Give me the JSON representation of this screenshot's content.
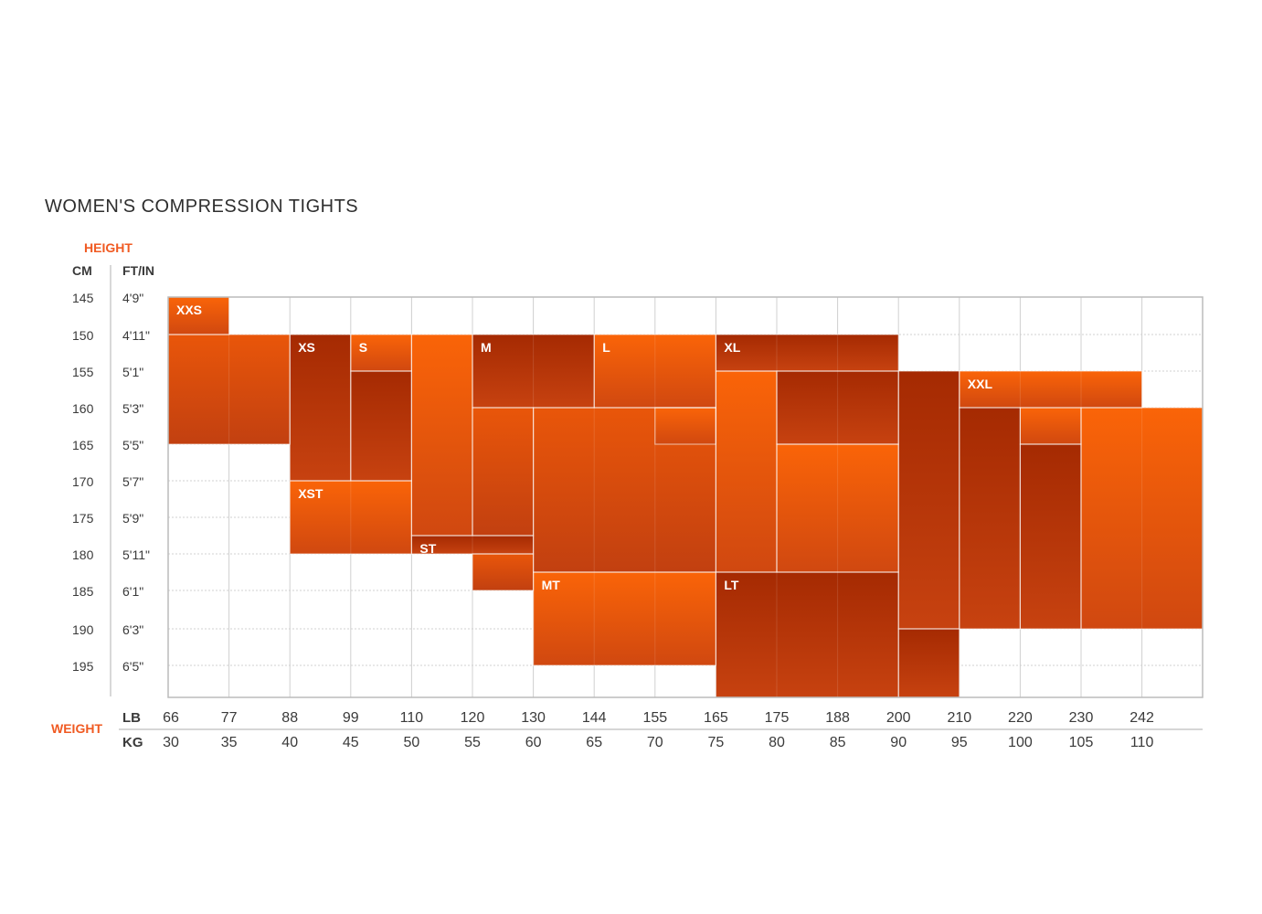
{
  "chart_data": {
    "type": "heatmap",
    "title": "WOMEN'S COMPRESSION TIGHTS",
    "height_axis": {
      "label": "HEIGHT",
      "unit_headers": [
        "CM",
        "FT/IN"
      ],
      "cm": [
        "145",
        "150",
        "155",
        "160",
        "165",
        "170",
        "175",
        "180",
        "185",
        "190",
        "195"
      ],
      "ftin": [
        "4'9\"",
        "4'11\"",
        "5'1\"",
        "5'3\"",
        "5'5\"",
        "5'7\"",
        "5'9\"",
        "5'11\"",
        "6'1\"",
        "6'3\"",
        "6'5\""
      ]
    },
    "weight_axis": {
      "label": "WEIGHT",
      "unit_headers": [
        "LB",
        "KG"
      ],
      "lb": [
        "66",
        "77",
        "88",
        "99",
        "110",
        "120",
        "130",
        "144",
        "155",
        "165",
        "175",
        "188",
        "200",
        "210",
        "220",
        "230",
        "242"
      ],
      "kg": [
        "30",
        "35",
        "40",
        "45",
        "50",
        "55",
        "60",
        "65",
        "70",
        "75",
        "80",
        "85",
        "90",
        "95",
        "100",
        "105",
        "110"
      ]
    },
    "size_regions": [
      {
        "size": "XXS",
        "kg_from": 30,
        "kg_to": 35,
        "cm_from": 145,
        "cm_to": 150,
        "shade": "light"
      },
      {
        "size": "",
        "kg_from": 30,
        "kg_to": 40,
        "cm_from": 150,
        "cm_to": 165,
        "shade": "mid"
      },
      {
        "size": "XS",
        "kg_from": 40,
        "kg_to": 45,
        "cm_from": 150,
        "cm_to": 170,
        "shade": "dark"
      },
      {
        "size": "S",
        "kg_from": 45,
        "kg_to": 50,
        "cm_from": 150,
        "cm_to": 155,
        "shade": "light"
      },
      {
        "size": "",
        "kg_from": 45,
        "kg_to": 50,
        "cm_from": 155,
        "cm_to": 170,
        "shade": "dark"
      },
      {
        "size": "",
        "kg_from": 50,
        "kg_to": 55,
        "cm_from": 150,
        "cm_to": 177.5,
        "shade": "light"
      },
      {
        "size": "M",
        "kg_from": 55,
        "kg_to": 65,
        "cm_from": 150,
        "cm_to": 160,
        "shade": "dark"
      },
      {
        "size": "",
        "kg_from": 55,
        "kg_to": 60,
        "cm_from": 160,
        "cm_to": 177.5,
        "shade": "mid"
      },
      {
        "size": "",
        "kg_from": 60,
        "kg_to": 75,
        "cm_from": 160,
        "cm_to": 182.5,
        "shade": "mid"
      },
      {
        "size": "L",
        "kg_from": 65,
        "kg_to": 75,
        "cm_from": 150,
        "cm_to": 160,
        "shade": "light"
      },
      {
        "size": "",
        "kg_from": 70,
        "kg_to": 75,
        "cm_from": 160,
        "cm_to": 165,
        "shade": "light"
      },
      {
        "size": "XL",
        "kg_from": 75,
        "kg_to": 90,
        "cm_from": 150,
        "cm_to": 155,
        "shade": "dark"
      },
      {
        "size": "",
        "kg_from": 75,
        "kg_to": 80,
        "cm_from": 155,
        "cm_to": 182.5,
        "shade": "light"
      },
      {
        "size": "",
        "kg_from": 80,
        "kg_to": 90,
        "cm_from": 155,
        "cm_to": 165,
        "shade": "dark"
      },
      {
        "size": "",
        "kg_from": 80,
        "kg_to": 90,
        "cm_from": 165,
        "cm_to": 182.5,
        "shade": "light"
      },
      {
        "size": "",
        "kg_from": 90,
        "kg_to": 95,
        "cm_from": 155,
        "cm_to": 190,
        "shade": "dark"
      },
      {
        "size": "XXL",
        "kg_from": 95,
        "kg_to": 110,
        "cm_from": 155,
        "cm_to": 160,
        "shade": "light"
      },
      {
        "size": "",
        "kg_from": 95,
        "kg_to": 100,
        "cm_from": 160,
        "cm_to": 190,
        "shade": "dark"
      },
      {
        "size": "",
        "kg_from": 100,
        "kg_to": 105,
        "cm_from": 160,
        "cm_to": 165,
        "shade": "light"
      },
      {
        "size": "",
        "kg_from": 100,
        "kg_to": 105,
        "cm_from": 165,
        "cm_to": 190,
        "shade": "dark"
      },
      {
        "size": "",
        "kg_from": 105,
        "kg_to": 115,
        "cm_from": 160,
        "cm_to": 190,
        "shade": "light"
      },
      {
        "size": "XST",
        "kg_from": 40,
        "kg_to": 50,
        "cm_from": 170,
        "cm_to": 180,
        "shade": "light"
      },
      {
        "size": "ST",
        "kg_from": 50,
        "kg_to": 60,
        "cm_from": 177.5,
        "cm_to": 180,
        "shade": "dark"
      },
      {
        "size": "",
        "kg_from": 55,
        "kg_to": 60,
        "cm_from": 180,
        "cm_to": 185,
        "shade": "mid"
      },
      {
        "size": "MT",
        "kg_from": 60,
        "kg_to": 75,
        "cm_from": 182.5,
        "cm_to": 195,
        "shade": "light"
      },
      {
        "size": "LT",
        "kg_from": 75,
        "kg_to": 90,
        "cm_from": 182.5,
        "cm_to": 200,
        "shade": "dark"
      },
      {
        "size": "",
        "kg_from": 90,
        "kg_to": 95,
        "cm_from": 190,
        "cm_to": 200,
        "shade": "dark"
      }
    ],
    "colors": {
      "light_top": "#fa6408",
      "light_bottom": "#d04810",
      "mid_top": "#e9560a",
      "mid_bottom": "#c24010",
      "dark_top": "#a52a02",
      "dark_bottom": "#c74210",
      "axis_label": "#f05a22",
      "tick_text": "#3a3a3a",
      "grid": "#d0d0d0",
      "frame": "#bbbbbb",
      "cell_label": "#ffffff"
    },
    "grid": true
  }
}
